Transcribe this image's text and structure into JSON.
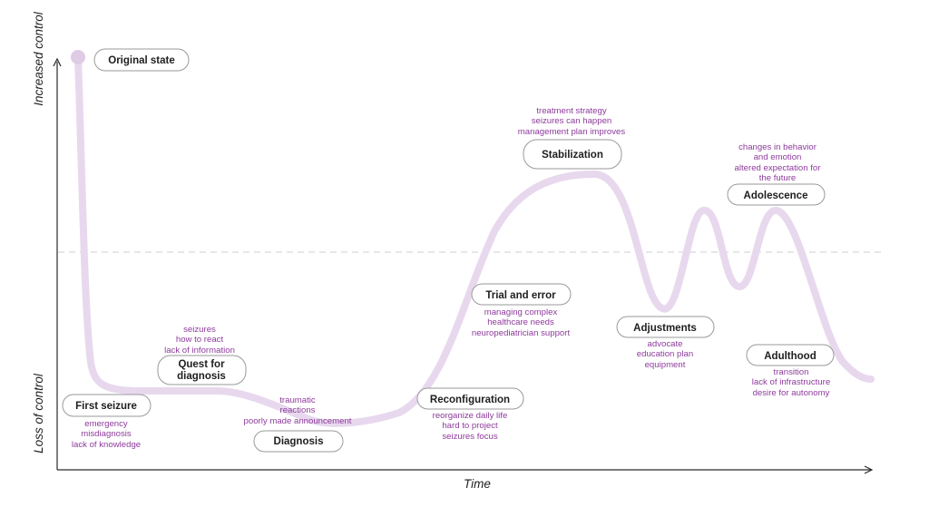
{
  "axes": {
    "y_top": "Increased control",
    "y_bottom": "Loss of control",
    "x": "Time"
  },
  "colors": {
    "curve": "#e8d8ee",
    "note_text": "#8e3b9c",
    "label_text": "#1e1e1e",
    "axis": "#2a2a2a",
    "baseline": "#cfcfcf",
    "box_border": "#9a9a9a"
  },
  "stages": [
    {
      "id": "original-state",
      "label": "Original state",
      "notes": []
    },
    {
      "id": "first-seizure",
      "label": "First seizure",
      "notes": [
        "emergency",
        "misdiagnosis",
        "lack of knowledge"
      ]
    },
    {
      "id": "quest-for-diagnosis",
      "label": "Quest for diagnosis",
      "label_lines": [
        "Quest for",
        "diagnosis"
      ],
      "notes": [
        "seizures",
        "how to react",
        "lack of information"
      ]
    },
    {
      "id": "diagnosis",
      "label": "Diagnosis",
      "notes": [
        "traumatic",
        "reactions",
        "poorly made announcement"
      ]
    },
    {
      "id": "reconfiguration",
      "label": "Reconfiguration",
      "notes": [
        "reorganize daily life",
        "hard to project",
        "seizures focus"
      ]
    },
    {
      "id": "trial-and-error",
      "label": "Trial and error",
      "notes": [
        "managing complex",
        "healthcare needs",
        "neuropediatrician support"
      ]
    },
    {
      "id": "stabilization",
      "label": "Stabilization",
      "notes": [
        "treatment strategy",
        "seizures can happen",
        "management plan improves"
      ]
    },
    {
      "id": "adjustments",
      "label": "Adjustments",
      "notes": [
        "advocate",
        "education plan",
        "equipment"
      ]
    },
    {
      "id": "adolescence",
      "label": "Adolescence",
      "notes": [
        "changes in behavior",
        "and emotion",
        "altered expectation for",
        "the future"
      ]
    },
    {
      "id": "adulthood",
      "label": "Adulthood",
      "notes": [
        "transition",
        "lack of infrastructure",
        "desire for autonomy"
      ]
    }
  ]
}
